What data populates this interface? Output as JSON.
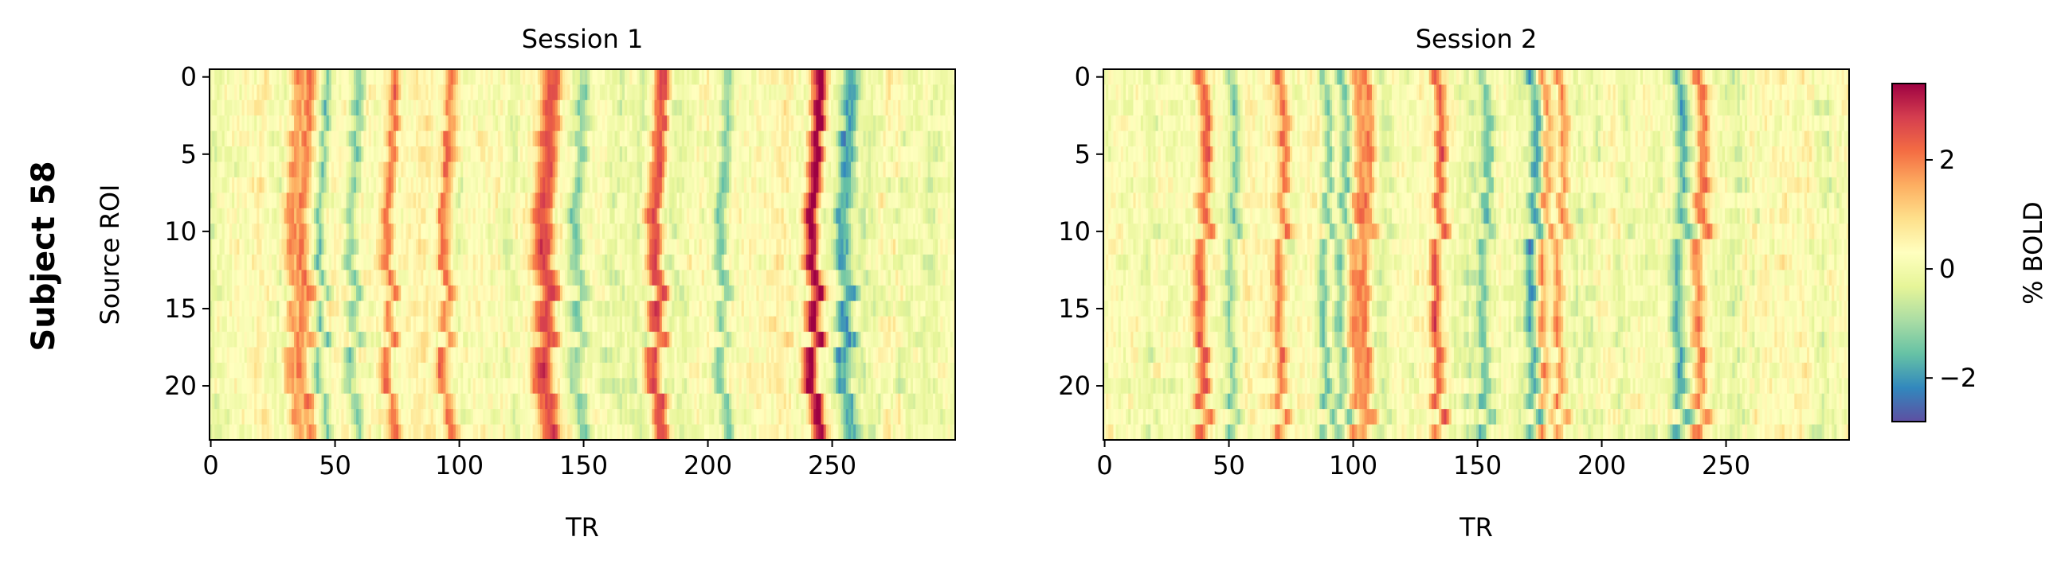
{
  "figure": {
    "row_label": "Subject 58"
  },
  "colorbar": {
    "label": "% BOLD",
    "min": -2.8,
    "max": 3.4,
    "ticks": [
      -2,
      0,
      2
    ],
    "tick_labels": [
      "−2",
      "0",
      "2"
    ],
    "colormap": "Spectral_r",
    "colormap_stops": [
      "#5e4fa2",
      "#3288bd",
      "#66c2a5",
      "#abdda4",
      "#e6f598",
      "#ffffbf",
      "#fee08b",
      "#fdae61",
      "#f46d43",
      "#d53e4f",
      "#9e0142"
    ]
  },
  "chart_data": [
    {
      "type": "heatmap",
      "title": "Session 1",
      "xlabel": "TR",
      "ylabel": "Source ROI",
      "xlim": [
        0,
        299
      ],
      "ylim": [
        23.5,
        -0.5
      ],
      "xticks": [
        0,
        50,
        100,
        150,
        200,
        250
      ],
      "xtick_labels": [
        "0",
        "50",
        "100",
        "150",
        "200",
        "250"
      ],
      "yticks": [
        0,
        5,
        10,
        15,
        20
      ],
      "ytick_labels": [
        "0",
        "5",
        "10",
        "15",
        "20"
      ],
      "n_rois": 24,
      "n_trs": 300,
      "value_range": [
        -2.8,
        3.4
      ],
      "prominent_positive_TRs": [
        33,
        38,
        72,
        95,
        133,
        137,
        178,
        181,
        242,
        244
      ],
      "prominent_negative_TRs": [
        45,
        58,
        148,
        206,
        254,
        257
      ],
      "grid": false
    },
    {
      "type": "heatmap",
      "title": "Session 2",
      "xlabel": "TR",
      "ylabel": "",
      "xlim": [
        0,
        299
      ],
      "ylim": [
        23.5,
        -0.5
      ],
      "xticks": [
        0,
        50,
        100,
        150,
        200,
        250
      ],
      "xtick_labels": [
        "0",
        "50",
        "100",
        "150",
        "200",
        "250"
      ],
      "yticks": [
        0,
        5,
        10,
        15,
        20
      ],
      "ytick_labels": [
        "0",
        "5",
        "10",
        "15",
        "20"
      ],
      "n_rois": 24,
      "n_trs": 300,
      "value_range": [
        -2.8,
        3.4
      ],
      "prominent_positive_TRs": [
        40,
        72,
        102,
        106,
        135,
        178,
        184,
        240
      ],
      "prominent_negative_TRs": [
        52,
        90,
        97,
        154,
        173,
        232
      ],
      "grid": false
    }
  ]
}
